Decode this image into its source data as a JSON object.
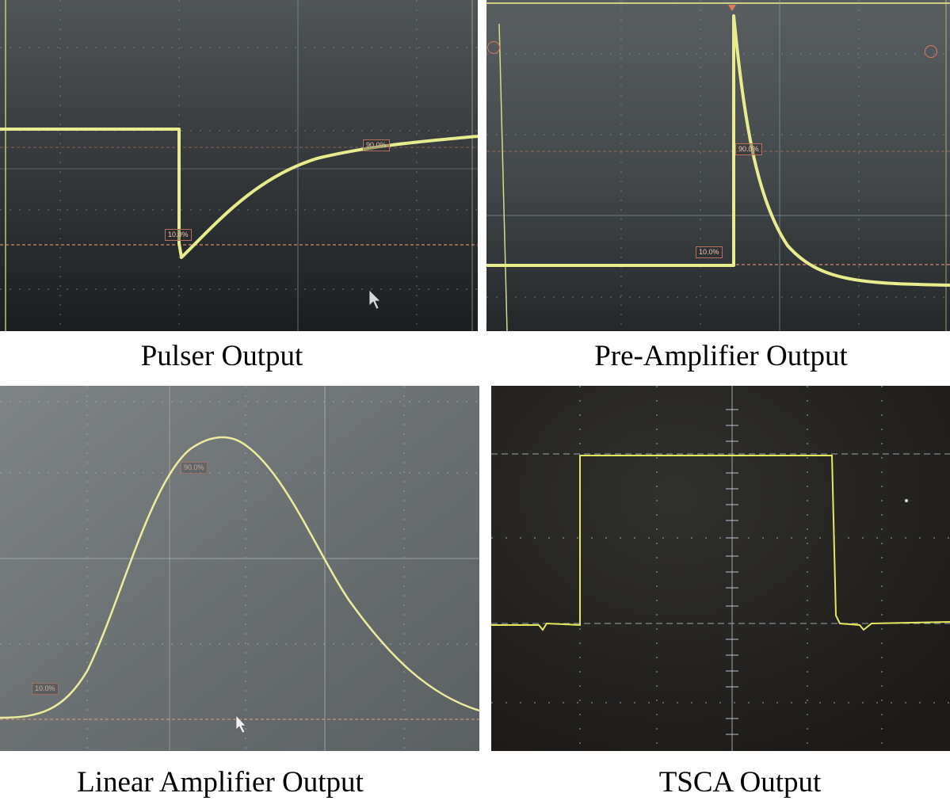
{
  "captions": {
    "pulser": "Pulser Output",
    "preamp": "Pre-Amplifier Output",
    "linear": "Linear Amplifier Output",
    "tsca": "TSCA Output"
  },
  "markers": {
    "pulser_low": "10.0%",
    "pulser_high": "90.0%",
    "preamp_low": "10.0%",
    "preamp_high": "90.0%",
    "linear_low": "10.0%",
    "linear_high": "90.0%"
  },
  "colors": {
    "trace": "#e8ec8c",
    "marker_line": "#d98a6a",
    "grid": "#8aa0b8",
    "screen_dark": "#23272b",
    "screen_gray": "#6f7476"
  }
}
